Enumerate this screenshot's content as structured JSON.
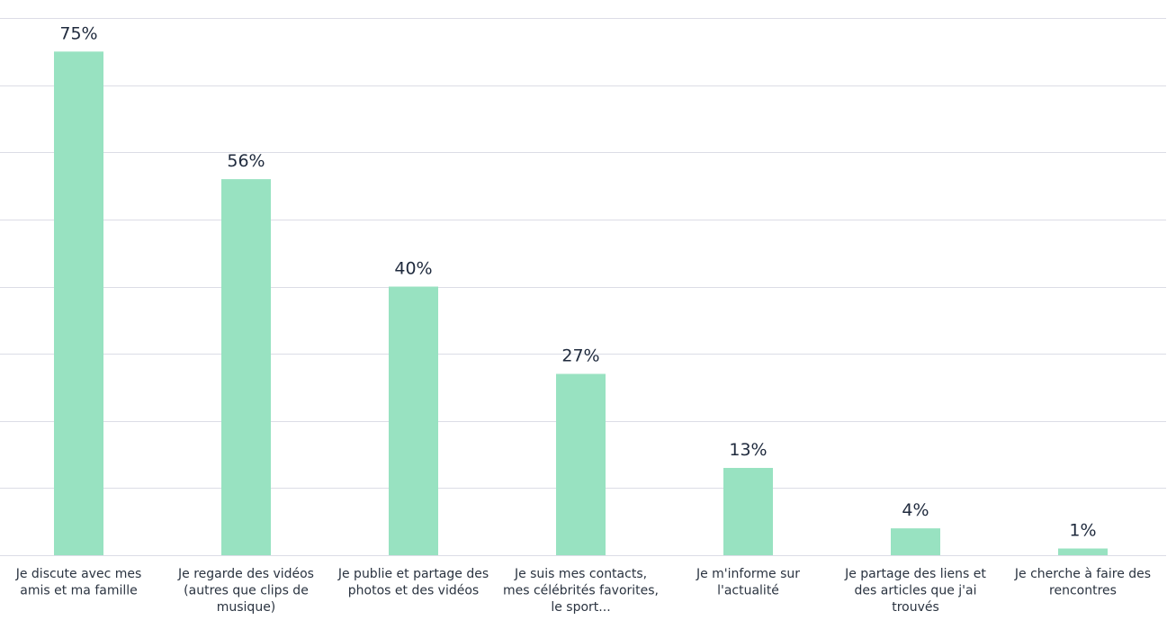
{
  "chart_data": {
    "type": "bar",
    "categories": [
      [
        "Je discute avec mes",
        "amis et ma famille"
      ],
      [
        "Je regarde des vidéos",
        "(autres que clips de",
        "musique)"
      ],
      [
        "Je publie et partage des",
        "photos et des vidéos"
      ],
      [
        "Je suis mes contacts,",
        "mes célébrités favorites,",
        "le sport..."
      ],
      [
        "Je m'informe sur",
        "l'actualité"
      ],
      [
        "Je partage des liens et",
        "des articles que j'ai",
        "trouvés"
      ],
      [
        "Je cherche à faire des",
        "rencontres"
      ]
    ],
    "values": [
      75,
      56,
      40,
      27,
      13,
      4,
      1
    ],
    "value_labels": [
      "75%",
      "56%",
      "40%",
      "27%",
      "13%",
      "4%",
      "1%"
    ],
    "ylim": [
      0,
      80
    ],
    "grid": true,
    "colors": {
      "bar": "#98e2c1",
      "grid": "#dcdde6",
      "text": "#1f2a3d"
    }
  }
}
